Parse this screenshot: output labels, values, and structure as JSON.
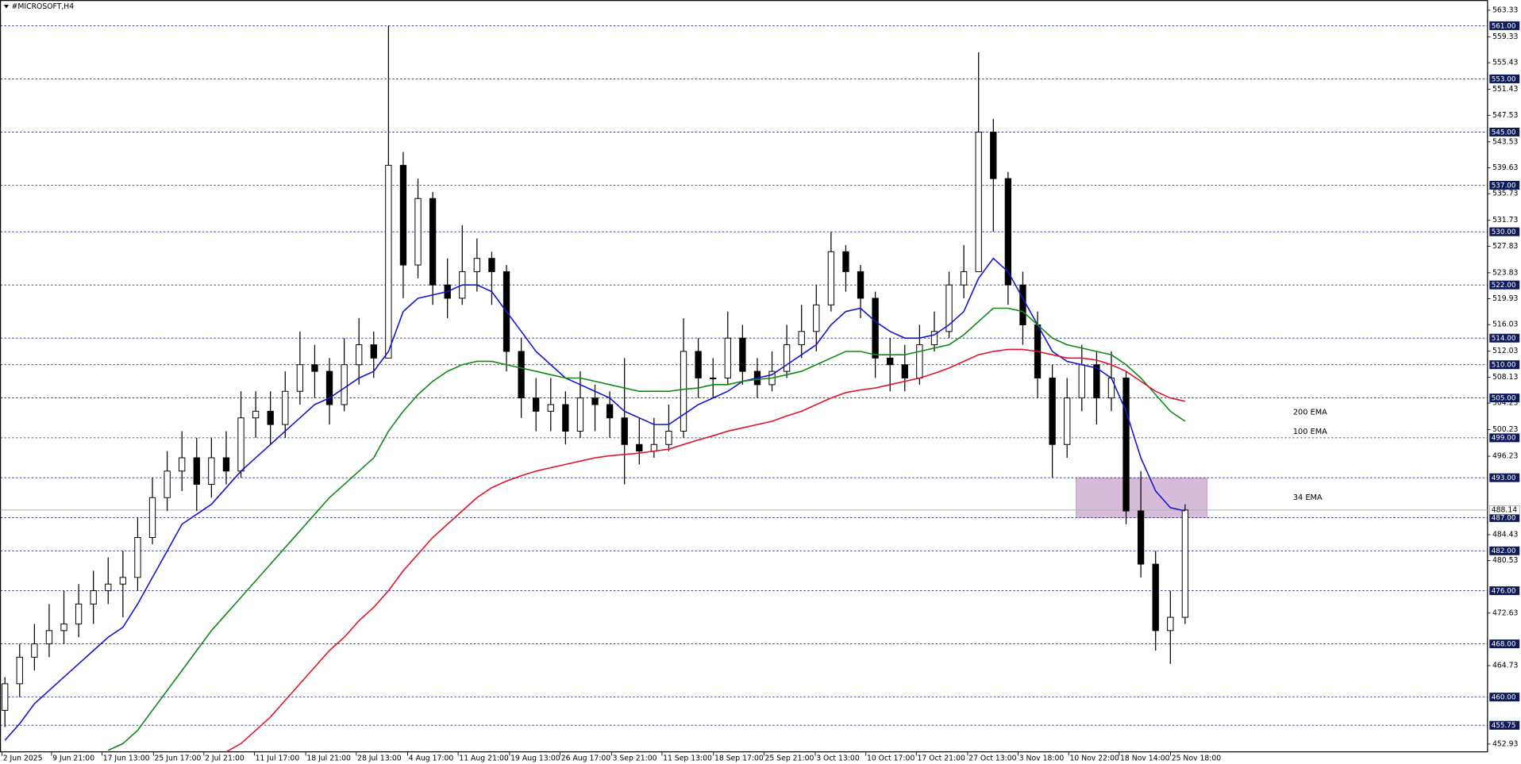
{
  "chart_data": {
    "type": "candlestick",
    "title": "#MICROSOFT,H4",
    "xlim": [
      -0.3,
      100.5
    ],
    "xticks": [
      {
        "value": -0.2,
        "label": "2 Jun 2025"
      },
      {
        "value": 3.16,
        "label": "9 Jun 21:00"
      },
      {
        "value": 6.58,
        "label": "17 Jun 13:00"
      },
      {
        "value": 10.07,
        "label": "25 Jun 17:00"
      },
      {
        "value": 13.49,
        "label": "2 Jul 21:00"
      },
      {
        "value": 16.91,
        "label": "11 Jul 17:00"
      },
      {
        "value": 20.39,
        "label": "18 Jul 21:00"
      },
      {
        "value": 23.82,
        "label": "28 Jul 13:00"
      },
      {
        "value": 27.3,
        "label": "4 Aug 17:00"
      },
      {
        "value": 30.72,
        "label": "11 Aug 21:00"
      },
      {
        "value": 34.21,
        "label": "19 Aug 13:00"
      },
      {
        "value": 37.63,
        "label": "26 Aug 17:00"
      },
      {
        "value": 41.12,
        "label": "3 Sep 21:00"
      },
      {
        "value": 44.54,
        "label": "11 Sep 13:00"
      },
      {
        "value": 48.03,
        "label": "18 Sep 17:00"
      },
      {
        "value": 51.45,
        "label": "25 Sep 21:00"
      },
      {
        "value": 54.93,
        "label": "3 Oct 13:00"
      },
      {
        "value": 58.36,
        "label": "10 Oct 17:00"
      },
      {
        "value": 61.78,
        "label": "17 Oct 21:00"
      },
      {
        "value": 65.26,
        "label": "27 Oct 13:00"
      },
      {
        "value": 68.68,
        "label": "3 Nov 18:00"
      },
      {
        "value": 72.11,
        "label": "10 Nov 22:00"
      },
      {
        "value": 75.53,
        "label": "18 Nov 14:00"
      },
      {
        "value": 79.01,
        "label": "25 Nov 18:00"
      }
    ],
    "ylim": [
      451.76,
      564.79
    ],
    "yticks": [
      563.33,
      559.33,
      555.43,
      551.43,
      547.53,
      543.53,
      539.63,
      535.73,
      531.73,
      527.83,
      523.83,
      519.93,
      516.03,
      512.03,
      508.13,
      504.23,
      500.23,
      496.23,
      484.43,
      480.53,
      472.63,
      464.73,
      452.93
    ],
    "ohlc": [
      [
        458,
        463,
        455.5,
        462
      ],
      [
        462,
        468,
        460,
        466
      ],
      [
        466,
        471,
        464,
        468
      ],
      [
        468,
        474,
        466,
        470
      ],
      [
        470,
        476,
        468,
        471
      ],
      [
        471,
        477,
        469,
        474
      ],
      [
        474,
        479,
        471,
        476
      ],
      [
        476,
        481,
        474,
        477
      ],
      [
        477,
        482,
        472,
        478
      ],
      [
        478,
        487,
        476,
        484
      ],
      [
        484,
        493,
        483,
        490
      ],
      [
        490,
        497,
        488,
        494
      ],
      [
        494,
        500,
        491,
        496
      ],
      [
        496,
        499,
        488,
        492
      ],
      [
        492,
        499,
        490,
        496
      ],
      [
        496,
        500,
        492,
        494
      ],
      [
        494,
        506,
        493,
        502
      ],
      [
        502,
        506,
        499,
        503
      ],
      [
        503,
        506,
        498,
        501
      ],
      [
        501,
        509,
        499,
        506
      ],
      [
        506,
        515,
        504,
        510
      ],
      [
        510,
        513,
        505,
        509
      ],
      [
        509,
        511,
        501,
        504
      ],
      [
        504,
        514,
        503,
        510
      ],
      [
        510,
        517,
        507,
        513
      ],
      [
        513,
        515,
        508,
        511
      ],
      [
        511,
        561,
        511,
        540
      ],
      [
        540,
        542,
        520,
        525
      ],
      [
        525,
        538,
        523,
        535
      ],
      [
        535,
        536,
        519,
        522
      ],
      [
        522,
        526,
        517,
        520
      ],
      [
        520,
        531,
        519,
        524
      ],
      [
        524,
        529,
        521,
        526
      ],
      [
        526,
        527,
        519,
        524
      ],
      [
        524,
        525,
        509,
        512
      ],
      [
        512,
        514,
        502,
        505
      ],
      [
        505,
        508,
        500,
        503
      ],
      [
        503,
        508,
        500,
        504
      ],
      [
        504,
        506,
        498,
        500
      ],
      [
        500,
        509,
        499,
        505
      ],
      [
        505,
        507,
        500,
        504
      ],
      [
        504,
        506,
        499,
        502
      ],
      [
        502,
        511,
        492,
        498
      ],
      [
        498,
        502,
        495,
        497
      ],
      [
        497,
        502,
        496,
        498
      ],
      [
        498,
        504,
        497,
        500
      ],
      [
        500,
        517,
        499,
        512
      ],
      [
        512,
        514,
        505,
        508
      ],
      [
        508,
        511,
        505,
        508
      ],
      [
        508,
        518,
        507,
        514
      ],
      [
        514,
        516,
        507,
        509
      ],
      [
        509,
        511,
        505,
        507
      ],
      [
        507,
        512,
        506,
        509
      ],
      [
        509,
        516,
        508,
        513
      ],
      [
        513,
        519,
        511,
        515
      ],
      [
        515,
        522,
        512,
        519
      ],
      [
        519,
        530,
        518,
        527
      ],
      [
        527,
        528,
        521,
        524
      ],
      [
        524,
        525,
        517,
        520
      ],
      [
        520,
        521,
        508,
        511
      ],
      [
        511,
        514,
        506,
        510
      ],
      [
        510,
        513,
        506,
        508
      ],
      [
        508,
        516,
        507,
        513
      ],
      [
        513,
        518,
        512,
        515
      ],
      [
        515,
        524,
        514,
        522
      ],
      [
        522,
        528,
        520,
        524
      ],
      [
        524,
        557,
        524,
        545
      ],
      [
        545,
        547,
        530,
        538
      ],
      [
        538,
        539,
        519,
        522
      ],
      [
        522,
        524,
        513,
        516
      ],
      [
        516,
        518,
        505,
        508
      ],
      [
        508,
        510,
        493,
        498
      ],
      [
        498,
        508,
        496,
        505
      ],
      [
        505,
        513,
        503,
        510
      ],
      [
        510,
        512,
        501,
        505
      ],
      [
        505,
        512,
        503,
        508
      ],
      [
        508,
        509,
        486,
        488
      ],
      [
        488,
        494,
        478,
        480
      ],
      [
        480,
        482,
        467,
        470
      ],
      [
        470,
        476,
        465,
        472
      ],
      [
        472,
        489,
        471,
        488.14
      ]
    ],
    "series": [
      {
        "name": "34 EMA",
        "color": "#1414d2",
        "values": [
          453.5,
          456,
          459,
          461,
          463,
          465,
          467,
          469,
          470.5,
          474,
          478,
          482,
          486,
          487.5,
          489,
          491.5,
          494,
          496,
          498,
          500,
          502,
          504,
          505,
          506.5,
          508,
          509,
          512,
          518,
          520,
          520.5,
          521,
          522,
          522,
          521,
          518,
          515,
          512,
          510,
          508,
          507,
          506,
          505,
          503,
          502,
          501,
          501,
          502.5,
          504,
          505,
          506,
          507.5,
          508,
          508.5,
          510,
          511.5,
          513,
          516,
          518,
          518.5,
          516.5,
          515,
          514,
          514,
          514.5,
          516,
          518,
          523,
          526,
          524,
          520,
          516,
          512,
          510.5,
          510,
          509.5,
          508,
          503,
          496,
          491,
          488.5,
          488
        ]
      },
      {
        "name": "100 EMA",
        "color": "#0f8a14",
        "values": [
          null,
          null,
          null,
          null,
          null,
          null,
          null,
          452,
          453,
          455,
          458,
          461,
          464,
          467,
          470,
          472.5,
          475,
          477.5,
          480,
          482.5,
          485,
          487.5,
          490,
          492,
          494,
          496,
          500,
          503,
          505.5,
          507.5,
          509,
          510,
          510.5,
          510.5,
          510,
          509.5,
          509,
          508.5,
          508,
          508,
          507.5,
          507,
          506.5,
          506,
          506,
          506,
          506.3,
          506.5,
          507,
          507,
          507.5,
          507.8,
          508,
          508.5,
          509,
          510,
          511,
          512,
          512,
          511.5,
          511.5,
          511.5,
          512,
          512.5,
          513,
          514.5,
          516.5,
          518.5,
          518.5,
          518,
          516,
          514,
          513,
          512.5,
          512,
          511.5,
          510,
          508,
          505.5,
          503,
          501.5
        ]
      },
      {
        "name": "200 EMA",
        "color": "#e0142d",
        "values": [
          null,
          null,
          null,
          null,
          null,
          null,
          null,
          null,
          null,
          null,
          null,
          null,
          null,
          null,
          null,
          451.5,
          453,
          455,
          457,
          459.5,
          462,
          464.5,
          467,
          469,
          471.5,
          473.5,
          476,
          479,
          481.5,
          484,
          486,
          488,
          490,
          491.5,
          492.5,
          493.3,
          494,
          494.5,
          495,
          495.5,
          496,
          496.3,
          496.5,
          496.7,
          497,
          497.3,
          498,
          498.7,
          499.3,
          500,
          500.5,
          501,
          501.5,
          502.3,
          503,
          504,
          505,
          505.8,
          506.2,
          506.5,
          507,
          507.5,
          508,
          508.7,
          509.5,
          510.5,
          511.5,
          512,
          512.3,
          512.3,
          512,
          511.5,
          511,
          511,
          510.7,
          510,
          509,
          507.5,
          506,
          505,
          504.5
        ]
      }
    ],
    "levels": {
      "values": [
        561,
        553,
        545,
        537,
        530,
        522,
        514,
        510,
        505,
        499,
        493,
        487,
        482,
        476,
        468,
        460,
        455.75
      ],
      "value_labels": [
        "561.00",
        "553.00",
        "545.00",
        "537.00",
        "530.00",
        "522.00",
        "514.00",
        "510.00",
        "505.00",
        "499.00",
        "493.00",
        "487.00",
        "482.00",
        "476.00",
        "468.00",
        "460.00",
        "455.75"
      ]
    },
    "last_price": 488.14,
    "zone": {
      "x": [
        72.6,
        81.5
      ],
      "y": [
        487,
        493
      ]
    }
  }
}
